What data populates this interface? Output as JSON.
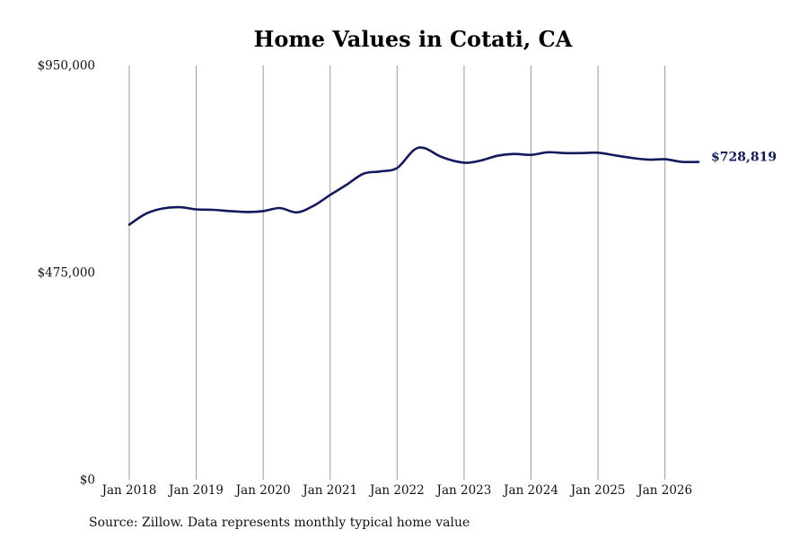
{
  "chart_data": {
    "type": "line",
    "title": "Home Values in Cotati, CA",
    "source": "Source: Zillow. Data represents monthly typical home value",
    "ylim": [
      0,
      950000
    ],
    "y_ticks": [
      {
        "value": 0,
        "label": "$0"
      },
      {
        "value": 475000,
        "label": "$475,000"
      },
      {
        "value": 950000,
        "label": "$950,000"
      }
    ],
    "x_ticks": [
      {
        "date": "2018-01",
        "label": "Jan 2018"
      },
      {
        "date": "2019-01",
        "label": "Jan 2019"
      },
      {
        "date": "2020-01",
        "label": "Jan 2020"
      },
      {
        "date": "2021-01",
        "label": "Jan 2021"
      },
      {
        "date": "2022-01",
        "label": "Jan 2022"
      },
      {
        "date": "2023-01",
        "label": "Jan 2023"
      },
      {
        "date": "2024-01",
        "label": "Jan 2024"
      },
      {
        "date": "2025-01",
        "label": "Jan 2025"
      },
      {
        "date": "2026-01",
        "label": "Jan 2026"
      }
    ],
    "xlim": [
      "2018-01",
      "2026-07"
    ],
    "vertical_grid": true,
    "line_color": "#141a5e",
    "end_label": "$728,819",
    "series": [
      {
        "name": "",
        "points": [
          {
            "x": "2018-01",
            "y": 585000
          },
          {
            "x": "2018-04",
            "y": 610000
          },
          {
            "x": "2018-07",
            "y": 622000
          },
          {
            "x": "2018-10",
            "y": 625000
          },
          {
            "x": "2019-01",
            "y": 620000
          },
          {
            "x": "2019-04",
            "y": 619000
          },
          {
            "x": "2019-07",
            "y": 616000
          },
          {
            "x": "2019-10",
            "y": 614000
          },
          {
            "x": "2020-01",
            "y": 616000
          },
          {
            "x": "2020-04",
            "y": 623000
          },
          {
            "x": "2020-07",
            "y": 613000
          },
          {
            "x": "2020-10",
            "y": 628000
          },
          {
            "x": "2021-01",
            "y": 653000
          },
          {
            "x": "2021-04",
            "y": 677000
          },
          {
            "x": "2021-07",
            "y": 702000
          },
          {
            "x": "2021-10",
            "y": 707000
          },
          {
            "x": "2022-01",
            "y": 715000
          },
          {
            "x": "2022-04",
            "y": 756000
          },
          {
            "x": "2022-06",
            "y": 760000
          },
          {
            "x": "2022-09",
            "y": 740000
          },
          {
            "x": "2023-01",
            "y": 727000
          },
          {
            "x": "2023-04",
            "y": 732000
          },
          {
            "x": "2023-07",
            "y": 743000
          },
          {
            "x": "2023-10",
            "y": 747000
          },
          {
            "x": "2024-01",
            "y": 745000
          },
          {
            "x": "2024-04",
            "y": 751000
          },
          {
            "x": "2024-07",
            "y": 749000
          },
          {
            "x": "2024-10",
            "y": 749000
          },
          {
            "x": "2025-01",
            "y": 750000
          },
          {
            "x": "2025-04",
            "y": 744000
          },
          {
            "x": "2025-07",
            "y": 738000
          },
          {
            "x": "2025-10",
            "y": 734000
          },
          {
            "x": "2026-01",
            "y": 735000
          },
          {
            "x": "2026-04",
            "y": 729000
          },
          {
            "x": "2026-07",
            "y": 728819
          }
        ]
      }
    ]
  }
}
